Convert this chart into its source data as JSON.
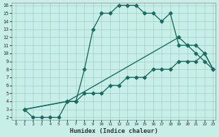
{
  "xlabel": "Humidex (Indice chaleur)",
  "ylabel": "",
  "background_color": "#c8eee8",
  "grid_color": "#a0ccc8",
  "line_color": "#1a6b60",
  "xlim": [
    0,
    23
  ],
  "ylim": [
    2,
    16
  ],
  "xticks": [
    0,
    1,
    2,
    3,
    4,
    5,
    6,
    7,
    8,
    9,
    10,
    11,
    12,
    13,
    14,
    15,
    16,
    17,
    18,
    19,
    20,
    21,
    22,
    23
  ],
  "yticks": [
    2,
    3,
    4,
    5,
    6,
    7,
    8,
    9,
    10,
    11,
    12,
    13,
    14,
    15,
    16
  ],
  "line1_x": [
    1,
    2,
    3,
    4,
    5,
    6,
    7,
    8,
    9,
    10,
    11,
    12,
    13,
    14,
    15,
    16,
    17,
    18,
    19,
    20,
    21,
    22,
    23
  ],
  "line1_y": [
    3,
    2,
    2,
    2,
    2,
    4,
    4,
    8,
    13,
    15,
    15,
    16,
    16,
    16,
    15,
    15,
    14,
    15,
    11,
    11,
    10,
    9,
    8
  ],
  "line2_x": [
    1,
    6,
    7,
    8,
    9,
    10,
    11,
    12,
    13,
    14,
    15,
    16,
    17,
    18,
    19,
    20,
    21,
    22,
    23
  ],
  "line2_y": [
    3,
    4,
    4,
    5,
    5,
    5,
    6,
    6,
    7,
    7,
    7,
    8,
    8,
    8,
    9,
    9,
    9,
    10,
    8
  ],
  "line3_x": [
    1,
    6,
    19,
    20,
    21,
    22,
    23
  ],
  "line3_y": [
    3,
    4,
    12,
    11,
    11,
    10,
    8
  ]
}
